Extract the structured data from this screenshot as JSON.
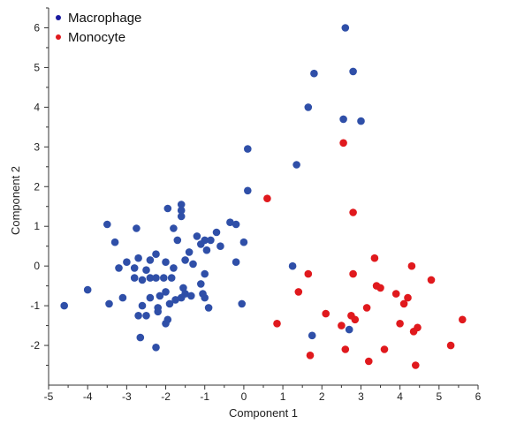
{
  "chart_data": {
    "type": "scatter",
    "title": "",
    "xlabel": "Component 1",
    "ylabel": "Component 2",
    "xlim": [
      -5,
      6
    ],
    "ylim": [
      -3,
      6.5
    ],
    "xticks": [
      -5,
      -4,
      -3,
      -2,
      -1,
      0,
      1,
      2,
      3,
      4,
      5,
      6
    ],
    "yticks": [
      -2,
      -1,
      0,
      1,
      2,
      3,
      4,
      5,
      6
    ],
    "grid": false,
    "legend_position": "top-left",
    "series": [
      {
        "name": "Macrophage",
        "color": "#2f4fa8",
        "legend_color": "#1a1aa0",
        "points": [
          [
            2.6,
            6.0
          ],
          [
            2.8,
            4.9
          ],
          [
            1.8,
            4.85
          ],
          [
            1.65,
            4.0
          ],
          [
            2.55,
            3.7
          ],
          [
            3.0,
            3.65
          ],
          [
            1.35,
            2.55
          ],
          [
            0.1,
            2.95
          ],
          [
            0.1,
            1.9
          ],
          [
            -1.6,
            1.55
          ],
          [
            -1.6,
            1.4
          ],
          [
            -1.95,
            1.45
          ],
          [
            -1.6,
            1.25
          ],
          [
            -3.5,
            1.05
          ],
          [
            -2.75,
            0.95
          ],
          [
            -1.8,
            0.95
          ],
          [
            -3.3,
            0.6
          ],
          [
            -1.7,
            0.65
          ],
          [
            -1.2,
            0.75
          ],
          [
            -1.0,
            0.65
          ],
          [
            -0.6,
            0.5
          ],
          [
            -0.7,
            0.85
          ],
          [
            -0.85,
            0.65
          ],
          [
            -1.1,
            0.55
          ],
          [
            -0.35,
            1.1
          ],
          [
            -0.2,
            1.05
          ],
          [
            0.0,
            0.6
          ],
          [
            -0.95,
            0.4
          ],
          [
            -1.4,
            0.35
          ],
          [
            -2.25,
            0.3
          ],
          [
            -2.7,
            0.2
          ],
          [
            -2.4,
            0.15
          ],
          [
            -2.0,
            0.1
          ],
          [
            -1.5,
            0.15
          ],
          [
            -1.3,
            0.05
          ],
          [
            -0.2,
            0.1
          ],
          [
            -3.0,
            0.1
          ],
          [
            -3.2,
            -0.05
          ],
          [
            -2.8,
            -0.05
          ],
          [
            -2.5,
            -0.1
          ],
          [
            -1.8,
            -0.05
          ],
          [
            -1.0,
            -0.2
          ],
          [
            -2.4,
            -0.3
          ],
          [
            -2.25,
            -0.3
          ],
          [
            -2.05,
            -0.3
          ],
          [
            -1.85,
            -0.3
          ],
          [
            -2.8,
            -0.3
          ],
          [
            -2.6,
            -0.35
          ],
          [
            -4.0,
            -0.6
          ],
          [
            -1.1,
            -0.45
          ],
          [
            -1.55,
            -0.55
          ],
          [
            -1.5,
            -0.7
          ],
          [
            -1.35,
            -0.75
          ],
          [
            -1.6,
            -0.8
          ],
          [
            -1.05,
            -0.7
          ],
          [
            -1.0,
            -0.8
          ],
          [
            -3.1,
            -0.8
          ],
          [
            -2.4,
            -0.8
          ],
          [
            -2.15,
            -0.75
          ],
          [
            -2.0,
            -0.65
          ],
          [
            -1.75,
            -0.85
          ],
          [
            -4.6,
            -1.0
          ],
          [
            -3.45,
            -0.95
          ],
          [
            -2.6,
            -1.0
          ],
          [
            -2.2,
            -1.05
          ],
          [
            -1.9,
            -0.95
          ],
          [
            -0.9,
            -1.05
          ],
          [
            -0.05,
            -0.95
          ],
          [
            -2.2,
            -1.15
          ],
          [
            -2.7,
            -1.25
          ],
          [
            -2.5,
            -1.25
          ],
          [
            -1.95,
            -1.35
          ],
          [
            -2.0,
            -1.45
          ],
          [
            -2.65,
            -1.8
          ],
          [
            -2.25,
            -2.05
          ],
          [
            1.25,
            0.0
          ],
          [
            2.7,
            -1.6
          ],
          [
            1.75,
            -1.75
          ]
        ]
      },
      {
        "name": "Monocyte",
        "color": "#e0191d",
        "legend_color": "#e0191d",
        "points": [
          [
            2.55,
            3.1
          ],
          [
            0.6,
            1.7
          ],
          [
            2.8,
            1.35
          ],
          [
            3.35,
            0.2
          ],
          [
            4.3,
            0.0
          ],
          [
            1.65,
            -0.2
          ],
          [
            2.8,
            -0.2
          ],
          [
            4.8,
            -0.35
          ],
          [
            1.4,
            -0.65
          ],
          [
            3.4,
            -0.5
          ],
          [
            3.5,
            -0.55
          ],
          [
            3.9,
            -0.7
          ],
          [
            4.2,
            -0.8
          ],
          [
            4.1,
            -0.95
          ],
          [
            3.15,
            -1.05
          ],
          [
            2.1,
            -1.2
          ],
          [
            2.75,
            -1.25
          ],
          [
            2.85,
            -1.35
          ],
          [
            5.6,
            -1.35
          ],
          [
            0.85,
            -1.45
          ],
          [
            2.5,
            -1.5
          ],
          [
            4.0,
            -1.45
          ],
          [
            4.45,
            -1.55
          ],
          [
            4.35,
            -1.65
          ],
          [
            5.3,
            -2.0
          ],
          [
            2.6,
            -2.1
          ],
          [
            3.6,
            -2.1
          ],
          [
            1.7,
            -2.25
          ],
          [
            3.2,
            -2.4
          ],
          [
            4.4,
            -2.5
          ]
        ]
      }
    ]
  }
}
